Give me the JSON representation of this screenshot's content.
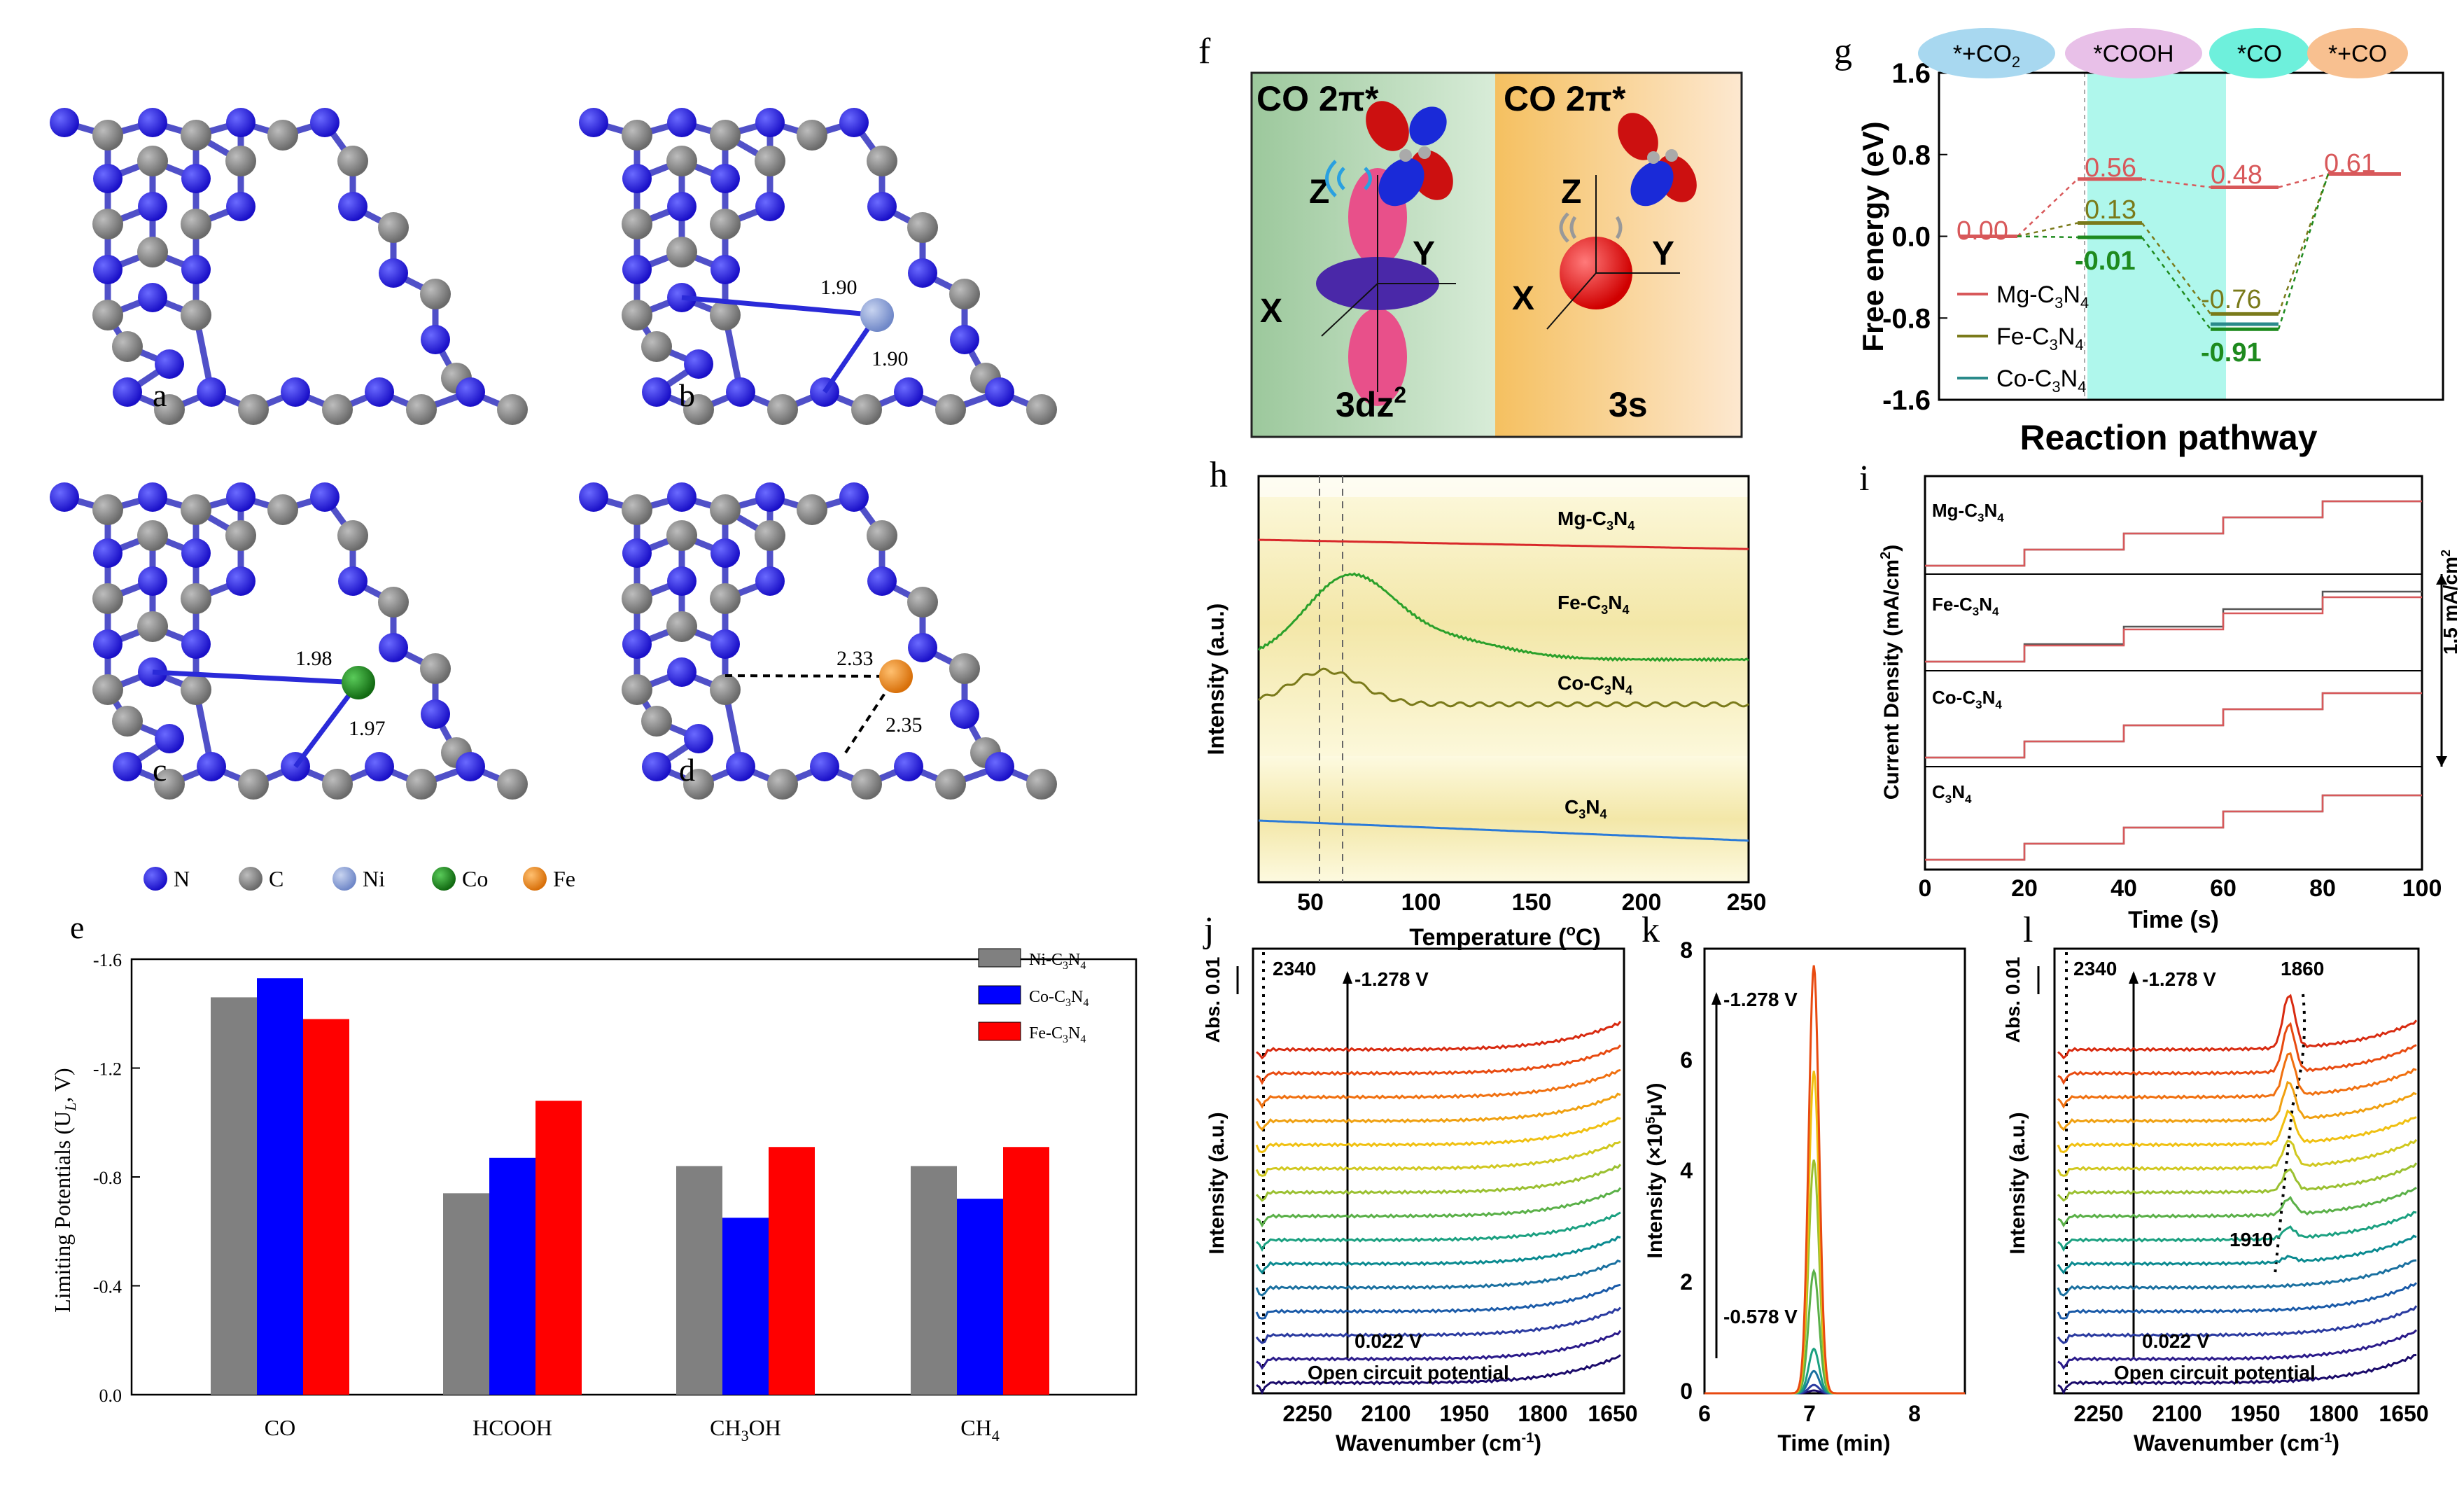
{
  "legend_atoms": {
    "n": "N",
    "c": "C",
    "ni": "Ni",
    "co": "Co",
    "fe": "Fe"
  },
  "colors": {
    "N": "#2a1fd8",
    "C": "#8a8a8a",
    "Ni": "#8aa0d8",
    "Co": "#1e8a1e",
    "Fe": "#f0901a",
    "mg": "#d8585a",
    "fe_line": "#7a7a1a",
    "co_line": "#2a8a8a"
  },
  "panels": {
    "a": {
      "label": "a"
    },
    "b": {
      "label": "b",
      "d1": "1.90",
      "d2": "1.90"
    },
    "c": {
      "label": "c",
      "d1": "1.98",
      "d2": "1.97"
    },
    "d": {
      "label": "d",
      "d1": "2.33",
      "d2": "2.35"
    },
    "f": {
      "label": "f",
      "left_title": "CO 2π*",
      "right_title": "CO 2π*",
      "left_orbital": "3dz",
      "left_sup": "2",
      "right_orbital": "3s",
      "z": "Z",
      "y": "Y",
      "x": "X"
    },
    "h": {
      "label": "h",
      "xlabel": "Temperature (",
      "xlabel_unit": "C)",
      "ylabel": "Intensity (a.u.)",
      "ticks": [
        "50",
        "100",
        "150",
        "200",
        "250"
      ],
      "s_mg": "Mg-C",
      "s_fe": "Fe-C",
      "s_co": "Co-C",
      "s_c": "C",
      "sub3": "3",
      "sub4": "N",
      "sub5": "4"
    },
    "i": {
      "label": "i",
      "ylabel": "Current Density (mA/cm",
      "ylabel_end": ")",
      "xlabel": "Time (s)",
      "ticks": [
        "0",
        "20",
        "40",
        "60",
        "80",
        "100"
      ],
      "scale": "1.5 mA/cm",
      "scale_sup": "2"
    },
    "j": {
      "label": "j",
      "xlabel": "Wavenumber (cm",
      "ylabel": "Intensity (a.u.)",
      "abs": "Abs. 0.01",
      "peak": "2340",
      "top_v": "-1.278 V",
      "bottom_v": "0.022 V",
      "ocp": "Open circuit potential",
      "ticks": [
        "2250",
        "2100",
        "1950",
        "1800",
        "1650"
      ]
    },
    "k": {
      "label": "k",
      "xlabel": "Time (min)",
      "ylabel": "Intensity (×10",
      "ylabel_unit": "μV)",
      "top_v": "-1.278 V",
      "bottom_v": "-0.578 V",
      "xticks": [
        "6",
        "7",
        "8"
      ],
      "yticks": [
        "0",
        "2",
        "4",
        "6",
        "8"
      ]
    },
    "l": {
      "label": "l",
      "xlabel": "Wavenumber (cm",
      "ylabel": "Intensity (a.u.)",
      "abs": "Abs. 0.01",
      "peak": "2340",
      "peak2": "1860",
      "peak3": "1910",
      "top_v": "-1.278 V",
      "bottom_v": "0.022 V",
      "ocp": "Open circuit potential",
      "ticks": [
        "2250",
        "2100",
        "1950",
        "1800",
        "1650"
      ]
    }
  },
  "chart_data": [
    {
      "panel": "e",
      "type": "bar",
      "ylabel": "Limiting Potentials (U",
      "ylabel_sub": "L",
      "ylabel_end": ", V)",
      "categories": [
        "CO",
        "HCOOH",
        "CH",
        "CH"
      ],
      "category_labels": {
        "co": "CO",
        "hcooh": "HCOOH",
        "ch3oh": "CH",
        "ch3oh_sub": "3",
        "ch3oh_end": "OH",
        "ch4": "CH",
        "ch4_sub": "4"
      },
      "yticks": [
        "-1.6",
        "-1.2",
        "-0.8",
        "-0.4",
        "0.0"
      ],
      "ylim": [
        0.0,
        -1.6
      ],
      "series": [
        {
          "name": "Ni-C3N4",
          "color": "#808080",
          "values": [
            -1.46,
            -0.74,
            -0.84,
            -0.84
          ]
        },
        {
          "name": "Co-C3N4",
          "color": "#0000ff",
          "values": [
            -1.53,
            -0.87,
            -0.65,
            -0.72
          ]
        },
        {
          "name": "Fe-C3N4",
          "color": "#ff0000",
          "values": [
            -1.38,
            -1.08,
            -0.91,
            -0.91
          ]
        }
      ],
      "legend": {
        "ni": "Ni-C",
        "co": "Co-C",
        "fe": "Fe-C",
        "sub3": "3",
        "n": "N",
        "sub4": "4"
      },
      "label": "e"
    },
    {
      "panel": "g",
      "type": "line",
      "title": "Reaction pathway",
      "ylabel": "Free energy (eV)",
      "yticks": [
        "1.6",
        "0.8",
        "0.0",
        "-0.8",
        "-1.6"
      ],
      "ylim": [
        -1.6,
        1.6
      ],
      "stages": {
        "s1": "*+CO",
        "s1_sub": "2",
        "s2": "*COOH",
        "s3": "*CO",
        "s4": "*+CO"
      },
      "series": [
        {
          "name": "Mg-C3N4",
          "values": [
            0.0,
            0.56,
            0.48,
            0.61
          ]
        },
        {
          "name": "Fe-C3N4",
          "values": [
            0.0,
            0.13,
            -0.76,
            0.61
          ]
        },
        {
          "name": "Co-C3N4",
          "values": [
            0.0,
            -0.01,
            -0.91,
            0.61
          ]
        }
      ],
      "value_labels": {
        "v0": "0.00",
        "v1": "0.56",
        "v2": "0.48",
        "v3": "0.61",
        "v4": "0.13",
        "v5": "-0.01",
        "v6": "-0.76",
        "v7": "-0.91"
      },
      "legend": {
        "mg": "Mg-C",
        "fe": "Fe-C",
        "co": "Co-C",
        "sub3": "3",
        "n": "N",
        "sub4": "4"
      },
      "label": "g"
    }
  ]
}
